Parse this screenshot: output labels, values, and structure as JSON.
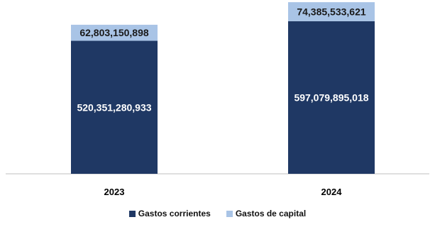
{
  "chart_data": {
    "type": "bar",
    "stacked": true,
    "categories": [
      "2023",
      "2024"
    ],
    "series": [
      {
        "name": "Gastos corrientes",
        "values": [
          520351280933,
          597079895018
        ],
        "labels": [
          "520,351,280,933",
          "597,079,895,018"
        ],
        "color": "#1f3864"
      },
      {
        "name": "Gastos de capital",
        "values": [
          62803150898,
          74385533621
        ],
        "labels": [
          "62,803,150,898",
          "74,385,533,621"
        ],
        "color": "#a9c4e6"
      }
    ],
    "title": "",
    "xlabel": "",
    "ylabel": "",
    "ylim": [
      0,
      680000000000
    ],
    "grid": false,
    "legend_position": "bottom"
  }
}
